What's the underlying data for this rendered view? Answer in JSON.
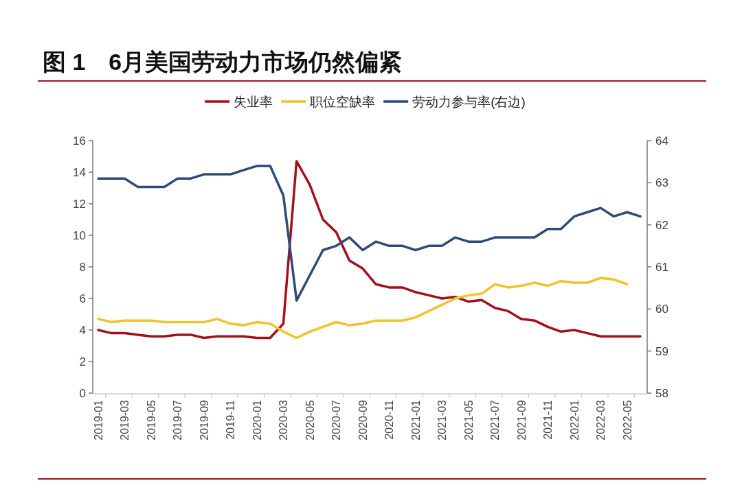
{
  "chart_data": {
    "type": "line",
    "title": "图 1　6月美国劳动力市场仍然偏紧",
    "categories": [
      "2019-01",
      null,
      "2019-03",
      null,
      "2019-05",
      null,
      "2019-07",
      null,
      "2019-09",
      null,
      "2019-11",
      null,
      "2020-01",
      null,
      "2020-03",
      null,
      "2020-05",
      null,
      "2020-07",
      null,
      "2020-09",
      null,
      "2020-11",
      null,
      "2021-01",
      null,
      "2021-03",
      null,
      "2021-05",
      null,
      "2021-07",
      null,
      "2021-09",
      null,
      "2021-11",
      null,
      "2022-01",
      null,
      "2022-03",
      null,
      "2022-05",
      null
    ],
    "series": [
      {
        "name": "失业率",
        "color": "#a3101c",
        "values": [
          4.0,
          3.8,
          3.8,
          3.7,
          3.6,
          3.6,
          3.7,
          3.7,
          3.5,
          3.6,
          3.6,
          3.6,
          3.5,
          3.5,
          4.4,
          14.7,
          13.2,
          11.0,
          10.2,
          8.4,
          7.9,
          6.9,
          6.7,
          6.7,
          6.4,
          6.2,
          6.0,
          6.1,
          5.8,
          5.9,
          5.4,
          5.2,
          4.7,
          4.6,
          4.2,
          3.9,
          4.0,
          3.8,
          3.6,
          3.6,
          3.6,
          3.6
        ]
      },
      {
        "name": "职位空缺率",
        "color": "#f0c32a",
        "values": [
          4.7,
          4.5,
          4.6,
          4.6,
          4.6,
          4.5,
          4.5,
          4.5,
          4.5,
          4.7,
          4.4,
          4.3,
          4.5,
          4.4,
          3.9,
          3.5,
          3.9,
          4.2,
          4.5,
          4.3,
          4.4,
          4.6,
          4.6,
          4.6,
          4.8,
          5.2,
          5.6,
          6.0,
          6.2,
          6.3,
          6.9,
          6.7,
          6.8,
          7.0,
          6.8,
          7.1,
          7.0,
          7.0,
          7.3,
          7.2,
          6.9,
          null
        ]
      },
      {
        "name": "劳动力参与率(右边)",
        "color": "#2e4a78",
        "axis": "y2",
        "values": [
          63.1,
          63.1,
          63.1,
          62.9,
          62.9,
          62.9,
          63.1,
          63.1,
          63.2,
          63.2,
          63.2,
          63.3,
          63.4,
          63.4,
          62.7,
          60.2,
          60.8,
          61.4,
          61.5,
          61.7,
          61.4,
          61.6,
          61.5,
          61.5,
          61.4,
          61.5,
          61.5,
          61.7,
          61.6,
          61.6,
          61.7,
          61.7,
          61.7,
          61.7,
          61.9,
          61.9,
          62.2,
          62.3,
          62.4,
          62.2,
          62.3,
          62.2
        ]
      }
    ],
    "ylim": [
      0,
      16
    ],
    "yticks": [
      0,
      2,
      4,
      6,
      8,
      10,
      12,
      14,
      16
    ],
    "y2lim": [
      58,
      64
    ],
    "y2ticks": [
      58,
      59,
      60,
      61,
      62,
      63,
      64
    ],
    "legend": "top",
    "grid": false,
    "marker": "none",
    "line_style": "solid"
  }
}
